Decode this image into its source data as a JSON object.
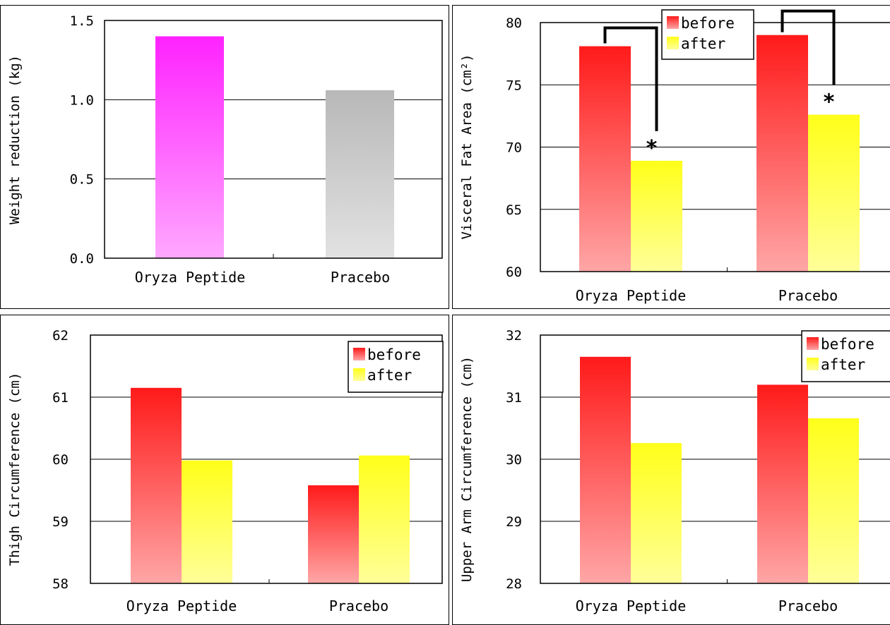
{
  "colors": {
    "before_top": "#ff1a1a",
    "before_bottom": "#ffa6a6",
    "after_top": "#ffff1a",
    "after_bottom": "#ffff99",
    "peptide_top": "#ff22ff",
    "peptide_bottom": "#ffa8ff",
    "placebo_top": "#b8b8b8",
    "placebo_bottom": "#e2e2e2"
  },
  "chart_data": [
    {
      "type": "bar",
      "ylabel": "Weight reduction (kg)",
      "categories": [
        "Oryza Peptide",
        "Pracebo"
      ],
      "ylim": [
        0,
        1.5
      ],
      "yticks": [
        "0.0",
        "0.5",
        "1.0",
        "1.5"
      ],
      "grid": true,
      "series": [
        {
          "values": [
            1.4,
            1.06
          ]
        }
      ]
    },
    {
      "type": "bar",
      "ylabel": "Visceral Fat Area (cm²)",
      "categories": [
        "Oryza Peptide",
        "Pracebo"
      ],
      "ylim": [
        60,
        80
      ],
      "yticks": [
        "60",
        "65",
        "70",
        "75",
        "80"
      ],
      "grid": true,
      "legend_position": "top-center",
      "series": [
        {
          "name": "before",
          "values": [
            78.1,
            79.0
          ]
        },
        {
          "name": "after",
          "values": [
            68.9,
            72.6
          ]
        }
      ],
      "annotations": [
        "*",
        "*"
      ]
    },
    {
      "type": "bar",
      "ylabel": "Thigh Circumference (cm)",
      "categories": [
        "Oryza Peptide",
        "Pracebo"
      ],
      "ylim": [
        58,
        62
      ],
      "yticks": [
        "58",
        "59",
        "60",
        "61",
        "62"
      ],
      "grid": true,
      "legend_position": "top-right",
      "series": [
        {
          "name": "before",
          "values": [
            61.15,
            59.58
          ]
        },
        {
          "name": "after",
          "values": [
            59.98,
            60.06
          ]
        }
      ]
    },
    {
      "type": "bar",
      "ylabel": "Upper Arm Circumference (cm)",
      "categories": [
        "Oryza Peptide",
        "Pracebo"
      ],
      "ylim": [
        28,
        32
      ],
      "yticks": [
        "28",
        "29",
        "30",
        "31",
        "32"
      ],
      "grid": true,
      "legend_position": "top-right",
      "series": [
        {
          "name": "before",
          "values": [
            31.65,
            31.2
          ]
        },
        {
          "name": "after",
          "values": [
            30.26,
            30.66
          ]
        }
      ]
    }
  ]
}
